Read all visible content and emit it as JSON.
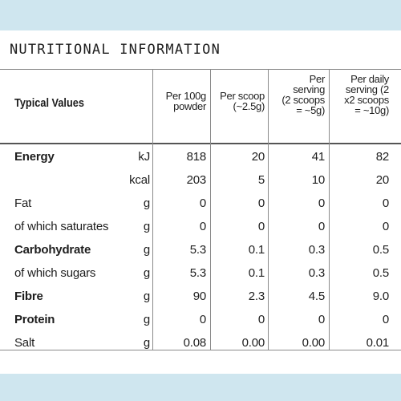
{
  "title": "NUTRITIONAL INFORMATION",
  "header_label": "Typical Values",
  "columns": [
    "Per 100g\npowder",
    "Per scoop\n(~2.5g)",
    "Per\nserving\n(2 scoops\n= ~5g)",
    "Per daily\nserving (2\nx2 scoops\n= ~10g)"
  ],
  "rows": [
    {
      "name": "Energy",
      "bold": true,
      "unit": "kJ",
      "values": [
        "818",
        "20",
        "41",
        "82"
      ]
    },
    {
      "name": "",
      "bold": false,
      "unit": "kcal",
      "values": [
        "203",
        "5",
        "10",
        "20"
      ]
    },
    {
      "name": "Fat",
      "bold": false,
      "unit": "g",
      "values": [
        "0",
        "0",
        "0",
        "0"
      ]
    },
    {
      "name": "of which saturates",
      "bold": false,
      "unit": "g",
      "values": [
        "0",
        "0",
        "0",
        "0"
      ]
    },
    {
      "name": "Carbohydrate",
      "bold": true,
      "unit": "g",
      "values": [
        "5.3",
        "0.1",
        "0.3",
        "0.5"
      ]
    },
    {
      "name": "of which sugars",
      "bold": false,
      "unit": "g",
      "values": [
        "5.3",
        "0.1",
        "0.3",
        "0.5"
      ]
    },
    {
      "name": "Fibre",
      "bold": true,
      "unit": "g",
      "values": [
        "90",
        "2.3",
        "4.5",
        "9.0"
      ]
    },
    {
      "name": "Protein",
      "bold": true,
      "unit": "g",
      "values": [
        "0",
        "0",
        "0",
        "0"
      ]
    },
    {
      "name": "Salt",
      "bold": false,
      "unit": "g",
      "values": [
        "0.08",
        "0.00",
        "0.00",
        "0.01"
      ]
    }
  ]
}
